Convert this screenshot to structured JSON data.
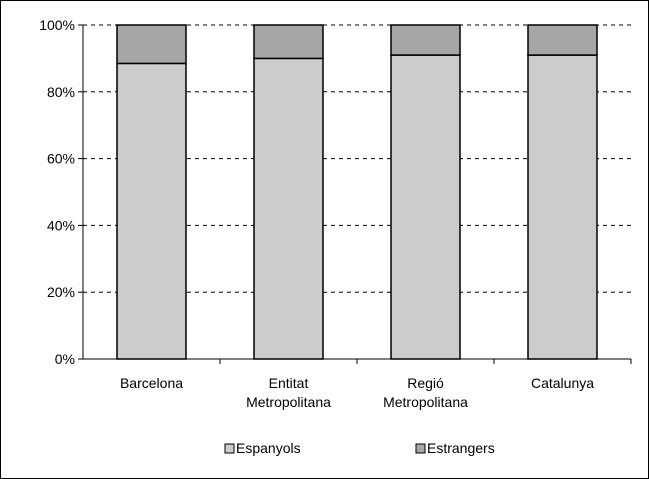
{
  "chart_data": {
    "type": "bar",
    "stacked": true,
    "percent_stacked": true,
    "categories": [
      [
        "Barcelona"
      ],
      [
        "Entitat",
        "Metropolitana"
      ],
      [
        "Regió",
        "Metropolitana"
      ],
      [
        "Catalunya"
      ]
    ],
    "series": [
      {
        "name": "Espanyols",
        "values": [
          88.5,
          90.0,
          91.0,
          91.0
        ],
        "color": "#cccccc"
      },
      {
        "name": "Estrangers",
        "values": [
          11.5,
          10.0,
          9.0,
          9.0
        ],
        "color": "#a6a6a6"
      }
    ],
    "y_ticks": [
      "0%",
      "20%",
      "40%",
      "60%",
      "80%",
      "100%"
    ],
    "ylim": [
      0,
      100
    ],
    "grid": "dashed-horizontal",
    "legend": "bottom"
  }
}
